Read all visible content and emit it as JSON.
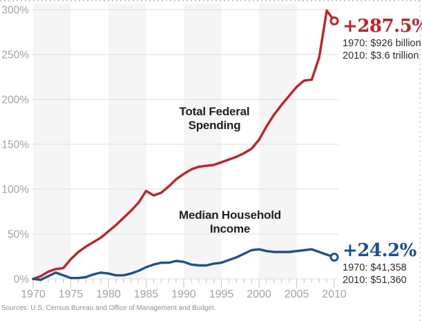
{
  "page": {
    "source_note": "Sources: U.S. Census Bureau and Office of Management and Budget."
  },
  "series_labels": {
    "spending": "Total Federal Spending",
    "income": "Median Household Income"
  },
  "callouts": {
    "spending": {
      "percent": "+287.5%",
      "detail1": "1970: $926 billion",
      "detail2": "2010: $3.6 trillion",
      "color": "#c32027"
    },
    "income": {
      "percent": "+24.2%",
      "detail1": "1970: $41,358",
      "detail2": "2010: $51,360",
      "color": "#1a518f"
    }
  },
  "chart_data": {
    "type": "line",
    "title": "",
    "xlabel": "",
    "ylabel": "",
    "xlim": [
      1970,
      2010
    ],
    "ylim": [
      0,
      300
    ],
    "grid": "horizontal",
    "legend_position": "inline-labels",
    "band_color": "#f5f5f5",
    "grid_color": "#e3e3e3",
    "tick_color": "#cccccc",
    "axis_label_color": "#a3a3a3",
    "shaded_bands": [
      [
        1970,
        1975
      ],
      [
        1980,
        1985
      ],
      [
        1990,
        1995
      ],
      [
        2000,
        2005
      ]
    ],
    "years": [
      1970,
      1971,
      1972,
      1973,
      1974,
      1975,
      1976,
      1977,
      1978,
      1979,
      1980,
      1981,
      1982,
      1983,
      1984,
      1985,
      1986,
      1987,
      1988,
      1989,
      1990,
      1991,
      1992,
      1993,
      1994,
      1995,
      1996,
      1997,
      1998,
      1999,
      2000,
      2001,
      2002,
      2003,
      2004,
      2005,
      2006,
      2007,
      2008,
      2009,
      2010
    ],
    "series": [
      {
        "name": "Total Federal Spending",
        "color": "#c32027",
        "end_label": "+287.5%",
        "values": [
          0,
          3,
          8,
          11,
          12,
          22,
          30,
          36,
          41,
          46,
          53,
          60,
          68,
          76,
          85,
          98,
          93,
          96,
          103,
          111,
          117,
          122,
          125,
          126,
          127,
          130,
          133,
          136,
          140,
          145,
          155,
          170,
          183,
          194,
          204,
          214,
          221,
          222,
          247,
          299,
          287.5
        ]
      },
      {
        "name": "Median Household Income",
        "color": "#1a518f",
        "end_label": "+24.2%",
        "values": [
          0,
          -1,
          3,
          7,
          4,
          1,
          1,
          2,
          5,
          7,
          6,
          4,
          4,
          6,
          9,
          13,
          16,
          18,
          18,
          20,
          19,
          16,
          15,
          15,
          17,
          18,
          21,
          24,
          28,
          32,
          33,
          31,
          30,
          30,
          30,
          31,
          32,
          33,
          30,
          27,
          24.2
        ]
      }
    ],
    "y_ticks": [
      {
        "v": 300,
        "label": "300%"
      },
      {
        "v": 250,
        "label": "250%"
      },
      {
        "v": 200,
        "label": "200%"
      },
      {
        "v": 150,
        "label": "150%"
      },
      {
        "v": 100,
        "label": "100%"
      },
      {
        "v": 50,
        "label": "50%"
      },
      {
        "v": 0,
        "label": "0%"
      }
    ],
    "x_ticks": [
      {
        "v": 1970,
        "label": "1970"
      },
      {
        "v": 1975,
        "label": "1975"
      },
      {
        "v": 1980,
        "label": "1980"
      },
      {
        "v": 1985,
        "label": "1985"
      },
      {
        "v": 1990,
        "label": "1990"
      },
      {
        "v": 1995,
        "label": "1995"
      },
      {
        "v": 2000,
        "label": "2000"
      },
      {
        "v": 2005,
        "label": "2005"
      },
      {
        "v": 2010,
        "label": "2010"
      }
    ]
  }
}
